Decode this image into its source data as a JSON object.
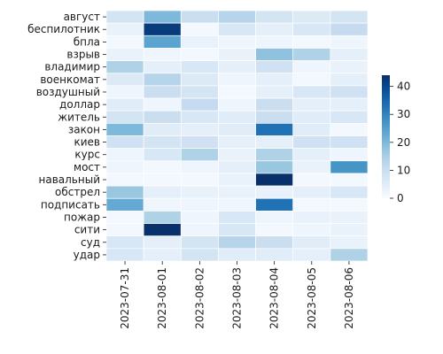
{
  "chart_data": {
    "type": "heatmap",
    "title": "",
    "xlabel": "",
    "ylabel": "",
    "x": [
      "2023-07-31",
      "2023-08-01",
      "2023-08-02",
      "2023-08-03",
      "2023-08-04",
      "2023-08-05",
      "2023-08-06"
    ],
    "y": [
      "август",
      "беспилотник",
      "бпла",
      "взрыв",
      "владимир",
      "военкомат",
      "воздушный",
      "доллар",
      "житель",
      "закон",
      "киев",
      "курс",
      "мост",
      "навальный",
      "обстрел",
      "подписать",
      "пожар",
      "сити",
      "суд",
      "удар"
    ],
    "values": [
      [
        8,
        20,
        10,
        13,
        8,
        6,
        8
      ],
      [
        3,
        42,
        1,
        7,
        4,
        7,
        11
      ],
      [
        1,
        24,
        3,
        2,
        2,
        1,
        2
      ],
      [
        3,
        2,
        1,
        3,
        18,
        14,
        4
      ],
      [
        14,
        4,
        7,
        4,
        9,
        2,
        3
      ],
      [
        6,
        13,
        6,
        2,
        4,
        1,
        4
      ],
      [
        2,
        10,
        8,
        1,
        4,
        7,
        9
      ],
      [
        5,
        2,
        11,
        2,
        10,
        4,
        4
      ],
      [
        8,
        10,
        7,
        5,
        10,
        5,
        7
      ],
      [
        20,
        5,
        4,
        5,
        33,
        5,
        1
      ],
      [
        9,
        8,
        9,
        4,
        4,
        9,
        9
      ],
      [
        2,
        7,
        14,
        3,
        14,
        4,
        2
      ],
      [
        2,
        1,
        2,
        4,
        17,
        3,
        27
      ],
      [
        1,
        1,
        1,
        3,
        44,
        1,
        1
      ],
      [
        17,
        4,
        3,
        3,
        3,
        4,
        7
      ],
      [
        23,
        2,
        2,
        2,
        33,
        1,
        1
      ],
      [
        1,
        14,
        2,
        7,
        2,
        3,
        3
      ],
      [
        1,
        44,
        2,
        7,
        1,
        2,
        3
      ],
      [
        7,
        4,
        8,
        13,
        10,
        5,
        3
      ],
      [
        7,
        4,
        8,
        5,
        5,
        4,
        14
      ]
    ],
    "colorbar": {
      "min": 0,
      "max": 44,
      "ticks": [
        "0",
        "10",
        "20",
        "30",
        "40"
      ],
      "tick_values": [
        0,
        10,
        20,
        30,
        40
      ]
    },
    "colormap": "Blues",
    "cell_line_color": "#ffffff",
    "grid": false
  }
}
